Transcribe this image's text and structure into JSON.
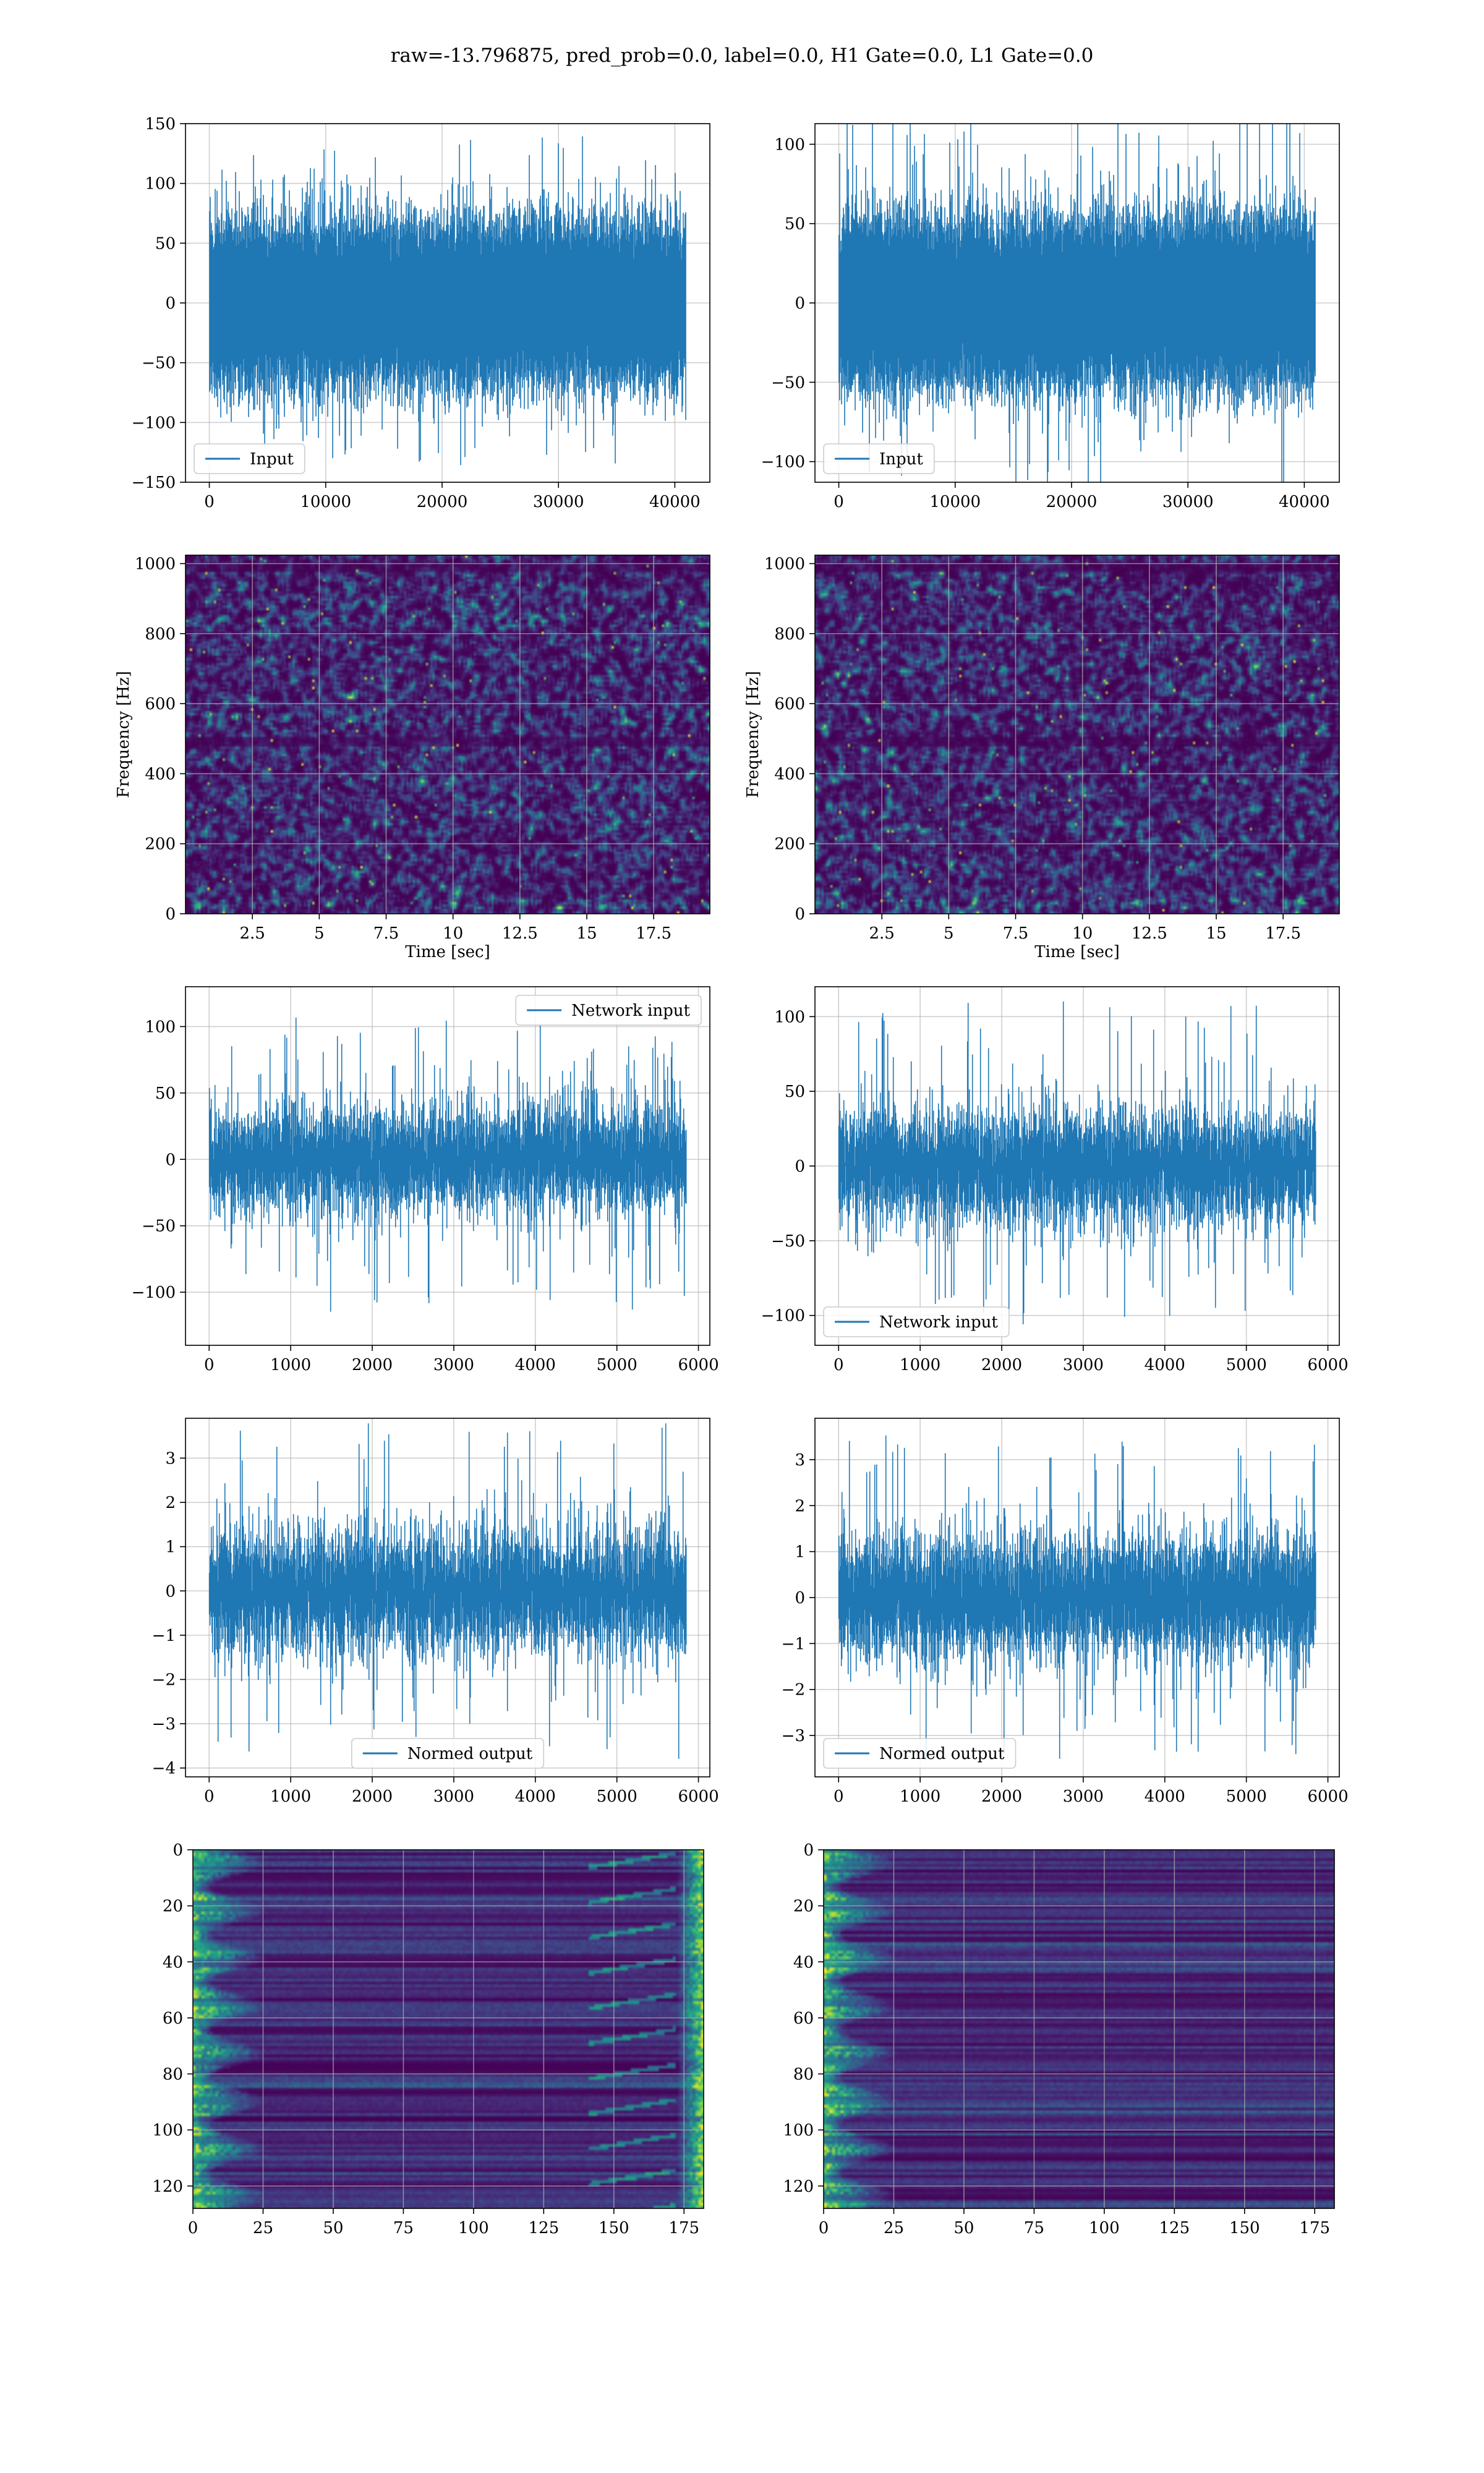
{
  "figure": {
    "suptitle": "raw=-13.796875, pred_prob=0.0, label=0.0, H1 Gate=0.0, L1 Gate=0.0"
  },
  "colors": {
    "line": "#1f77b4",
    "grid": "#b0b0b0",
    "viridis_low": "#440154",
    "viridis_mid": "#21918c",
    "viridis_high": "#fde725"
  },
  "chart_data": [
    {
      "id": "r0c0",
      "type": "line",
      "signal": "noise",
      "n": 40960,
      "xlim": [
        -2048,
        43008
      ],
      "ylim": [
        -150,
        150
      ],
      "xticks": [
        0,
        10000,
        20000,
        30000,
        40000
      ],
      "yticks": [
        -150,
        -100,
        -50,
        0,
        50,
        100,
        150
      ],
      "envelope": {
        "core": 70,
        "peak": 140
      },
      "legend": {
        "label": "Input",
        "loc": "lower-left"
      }
    },
    {
      "id": "r0c1",
      "type": "line",
      "signal": "noise",
      "n": 40960,
      "xlim": [
        -2048,
        43008
      ],
      "ylim": [
        -113,
        113
      ],
      "xticks": [
        0,
        10000,
        20000,
        30000,
        40000
      ],
      "yticks": [
        -100,
        -50,
        0,
        50,
        100
      ],
      "envelope": {
        "core": 55,
        "peak": 125
      },
      "legend": {
        "label": "Input",
        "loc": "lower-left"
      }
    },
    {
      "id": "r1c0",
      "type": "heatmap",
      "kind": "spectrogram",
      "xlim": [
        0,
        19.6
      ],
      "ylim": [
        0,
        1024
      ],
      "xticks": [
        2.5,
        5.0,
        7.5,
        10.0,
        12.5,
        15.0,
        17.5
      ],
      "yticks": [
        0,
        200,
        400,
        600,
        800,
        1000
      ],
      "xlabel": "Time [sec]",
      "ylabel": "Frequency [Hz]",
      "bright_bands": [
        840,
        560,
        30
      ],
      "dark_bands": [
        495,
        995
      ]
    },
    {
      "id": "r1c1",
      "type": "heatmap",
      "kind": "spectrogram",
      "xlim": [
        0,
        19.6
      ],
      "ylim": [
        0,
        1024
      ],
      "xticks": [
        2.5,
        5.0,
        7.5,
        10.0,
        12.5,
        15.0,
        17.5
      ],
      "yticks": [
        0,
        200,
        400,
        600,
        800,
        1000
      ],
      "xlabel": "Time [sec]",
      "ylabel": "Frequency [Hz]",
      "bright_bands": [
        30
      ],
      "dark_bands": [
        495,
        995
      ]
    },
    {
      "id": "r2c0",
      "type": "line",
      "signal": "noise",
      "n": 5850,
      "xlim": [
        -290,
        6140
      ],
      "ylim": [
        -140,
        130
      ],
      "xticks": [
        0,
        1000,
        2000,
        3000,
        4000,
        5000,
        6000
      ],
      "yticks": [
        -100,
        -50,
        0,
        50,
        100
      ],
      "envelope": {
        "core": 45,
        "peak": 115
      },
      "legend": {
        "label": "Network input",
        "loc": "upper-right"
      }
    },
    {
      "id": "r2c1",
      "type": "line",
      "signal": "noise",
      "n": 5850,
      "xlim": [
        -290,
        6140
      ],
      "ylim": [
        -120,
        120
      ],
      "xticks": [
        0,
        1000,
        2000,
        3000,
        4000,
        5000,
        6000
      ],
      "yticks": [
        -100,
        -50,
        0,
        50,
        100
      ],
      "envelope": {
        "core": 45,
        "peak": 112
      },
      "legend": {
        "label": "Network input",
        "loc": "lower-left"
      }
    },
    {
      "id": "r3c0",
      "type": "line",
      "signal": "noise",
      "n": 5850,
      "xlim": [
        -290,
        6140
      ],
      "ylim": [
        -4.2,
        3.9
      ],
      "xticks": [
        0,
        1000,
        2000,
        3000,
        4000,
        5000,
        6000
      ],
      "yticks": [
        -4,
        -3,
        -2,
        -1,
        0,
        1,
        2,
        3
      ],
      "envelope": {
        "core": 1.6,
        "peak": 3.8
      },
      "legend": {
        "label": "Normed output",
        "loc": "lower-center"
      }
    },
    {
      "id": "r3c1",
      "type": "line",
      "signal": "noise",
      "n": 5850,
      "xlim": [
        -290,
        6140
      ],
      "ylim": [
        -3.9,
        3.9
      ],
      "xticks": [
        0,
        1000,
        2000,
        3000,
        4000,
        5000,
        6000
      ],
      "yticks": [
        -3,
        -2,
        -1,
        0,
        1,
        2,
        3
      ],
      "envelope": {
        "core": 1.6,
        "peak": 3.6
      },
      "legend": {
        "label": "Normed output",
        "loc": "lower-left"
      }
    },
    {
      "id": "r4c0",
      "type": "heatmap",
      "kind": "feature-map",
      "xlim": [
        0,
        182
      ],
      "ylim": [
        128,
        0
      ],
      "xticks": [
        0,
        25,
        50,
        75,
        100,
        125,
        150,
        175
      ],
      "yticks": [
        0,
        20,
        40,
        60,
        80,
        100,
        120
      ],
      "edge_activity": "both"
    },
    {
      "id": "r4c1",
      "type": "heatmap",
      "kind": "feature-map",
      "xlim": [
        0,
        182
      ],
      "ylim": [
        128,
        0
      ],
      "xticks": [
        0,
        25,
        50,
        75,
        100,
        125,
        150,
        175
      ],
      "yticks": [
        0,
        20,
        40,
        60,
        80,
        100,
        120
      ],
      "edge_activity": "left"
    }
  ]
}
